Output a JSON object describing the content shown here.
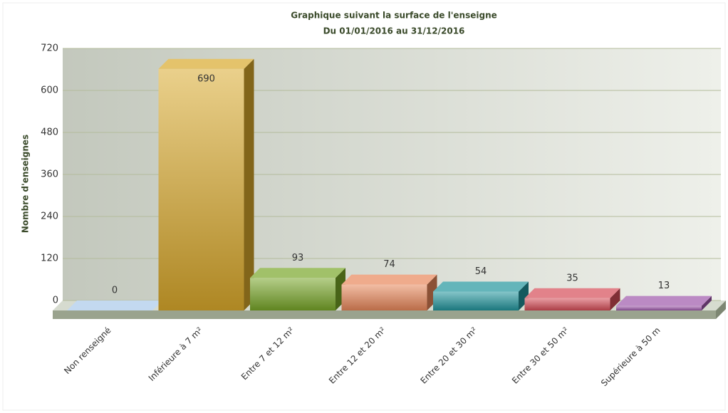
{
  "chart_data": {
    "type": "bar",
    "title": "Graphique suivant la surface de l'enseigne",
    "subtitle": "Du 01/01/2016 au 31/12/2016",
    "y_label": "Nombre d'enseignes",
    "categories": [
      "Non renseigné",
      "Inférieure à 7 m²",
      "Entre 7 et 12 m²",
      "Entre 12 et 20 m²",
      "Entre 20 et 30 m²",
      "Entre 30 et 50 m²",
      "Supérieure à 50 m"
    ],
    "values": [
      0,
      690,
      93,
      74,
      54,
      35,
      13
    ],
    "colors": [
      "#a9c8ea",
      "#d9a92c",
      "#78a628",
      "#e8875a",
      "#22959c",
      "#d64d58",
      "#9e58ab"
    ],
    "ylim": [
      0,
      720
    ],
    "yticks": [
      0,
      120,
      240,
      360,
      480,
      600,
      720
    ],
    "grid": true
  }
}
